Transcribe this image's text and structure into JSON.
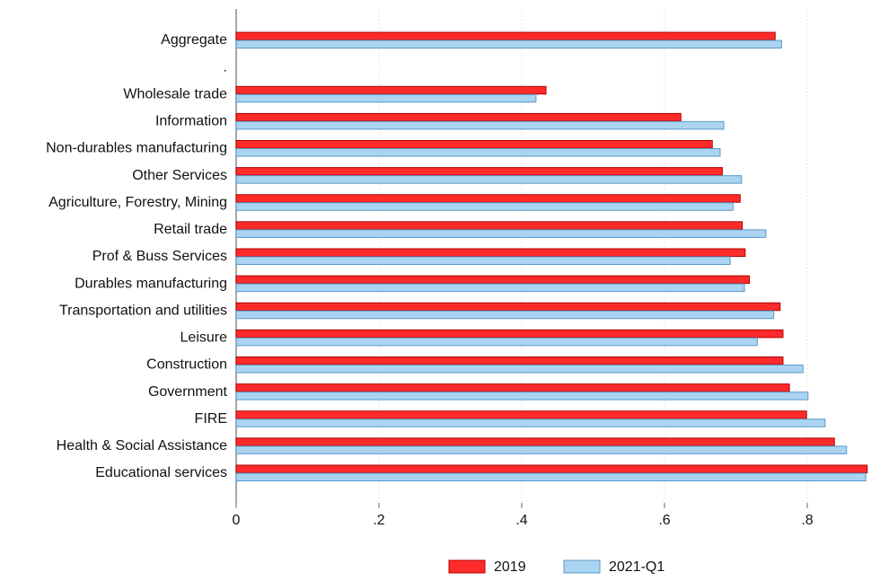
{
  "chart_data": {
    "type": "hbar",
    "categories": [
      "Aggregate",
      ".",
      "Wholesale trade",
      "Information",
      "Non-durables manufacturing",
      "Other Services",
      "Agriculture, Forestry, Mining",
      "Retail trade",
      "Prof & Buss Services",
      "Durables manufacturing",
      "Transportation and utilities",
      "Leisure",
      "Construction",
      "Government",
      "FIRE",
      "Health & Social Assistance",
      "Educational services"
    ],
    "series": [
      {
        "name": "2019",
        "color": "#ff2b2b",
        "values": [
          0.755,
          null,
          0.434,
          0.623,
          0.667,
          0.681,
          0.706,
          0.709,
          0.713,
          0.719,
          0.762,
          0.766,
          0.766,
          0.775,
          0.799,
          0.838,
          0.884
        ]
      },
      {
        "name": "2021-Q1",
        "color": "#aad4f0",
        "values": [
          0.764,
          null,
          0.42,
          0.683,
          0.678,
          0.708,
          0.696,
          0.742,
          0.692,
          0.712,
          0.753,
          0.73,
          0.794,
          0.801,
          0.825,
          0.855,
          0.882
        ]
      }
    ],
    "xlim": [
      0,
      0.9
    ],
    "xticks": [
      0,
      {
        "value": 0.2,
        "label": ".2"
      },
      {
        "value": 0.4,
        "label": ".4"
      },
      {
        "value": 0.6,
        "label": ".6"
      },
      {
        "value": 0.8,
        "label": ".8"
      }
    ],
    "grid": true,
    "legend": "bottom"
  }
}
